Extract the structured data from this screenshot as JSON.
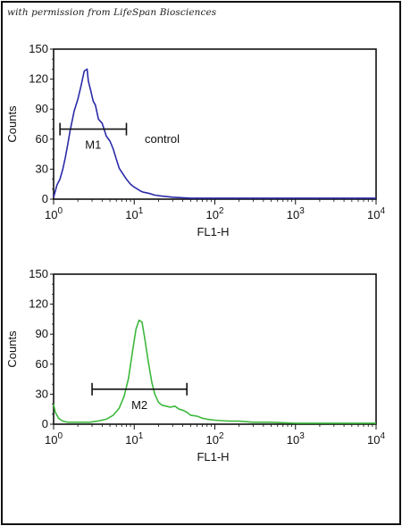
{
  "permission_note": "with permission from LifeSpan Biosciences",
  "chart_data": [
    {
      "type": "line",
      "xlabel": "FL1-H",
      "ylabel": "Counts",
      "x_scale": "log",
      "xlim": [
        1,
        10000
      ],
      "ylim": [
        0,
        150
      ],
      "yticks": [
        0,
        30,
        60,
        90,
        120,
        150
      ],
      "ytick_labels": [
        "0",
        "30",
        "60",
        "90",
        "120",
        "150"
      ],
      "xtick_base": "10",
      "xtick_exponents": [
        "0",
        "1",
        "2",
        "3",
        "4"
      ],
      "annotation": "control",
      "gate": {
        "label": "M1",
        "from": 1.2,
        "to": 8.0,
        "y": 70
      },
      "color": "#2b2ba8",
      "series": [
        {
          "x": [
            1.0,
            1.05,
            1.1,
            1.2,
            1.3,
            1.4,
            1.5,
            1.6,
            1.8,
            2.0,
            2.2,
            2.4,
            2.6,
            2.7,
            2.9,
            3.1,
            3.3,
            3.6,
            4.0,
            4.5,
            5.0,
            5.5,
            6.0,
            6.5,
            7.0,
            8.0,
            9.0,
            10,
            11,
            12,
            13,
            15,
            18,
            22,
            30,
            50,
            100,
            300,
            1000,
            10000
          ],
          "y": [
            2,
            8,
            14,
            20,
            30,
            42,
            55,
            68,
            88,
            100,
            114,
            128,
            130,
            118,
            108,
            98,
            94,
            80,
            76,
            63,
            58,
            50,
            40,
            31,
            27,
            20,
            15,
            12,
            10,
            8,
            7,
            6,
            4,
            3,
            2,
            1,
            1,
            1,
            1,
            1
          ]
        }
      ]
    },
    {
      "type": "line",
      "xlabel": "FL1-H",
      "ylabel": "Counts",
      "x_scale": "log",
      "xlim": [
        1,
        10000
      ],
      "ylim": [
        0,
        150
      ],
      "yticks": [
        0,
        30,
        60,
        90,
        120,
        150
      ],
      "ytick_labels": [
        "0",
        "30",
        "60",
        "90",
        "120",
        "150"
      ],
      "xtick_base": "10",
      "xtick_exponents": [
        "0",
        "1",
        "2",
        "3",
        "4"
      ],
      "gate": {
        "label": "M2",
        "from": 3.0,
        "to": 45,
        "y": 35
      },
      "color": "#3db83d",
      "series": [
        {
          "x": [
            1.0,
            1.05,
            1.15,
            1.3,
            1.5,
            1.8,
            2.2,
            2.8,
            3.5,
            4.5,
            5.5,
            6.5,
            7.5,
            8.5,
            9.5,
            10.5,
            11.5,
            12.5,
            13.5,
            15,
            16.5,
            18,
            20,
            22,
            25,
            28,
            32,
            36,
            40,
            45,
            50,
            60,
            70,
            80,
            100,
            150,
            200,
            300,
            500,
            1000,
            10000
          ],
          "y": [
            20,
            12,
            6,
            3,
            2,
            2,
            2,
            2,
            3,
            5,
            9,
            16,
            28,
            46,
            72,
            95,
            104,
            102,
            86,
            62,
            42,
            30,
            22,
            19,
            18,
            17,
            18,
            15,
            14,
            12,
            9,
            8,
            6,
            5,
            4,
            3,
            3,
            2,
            2,
            1,
            1
          ]
        }
      ]
    }
  ]
}
